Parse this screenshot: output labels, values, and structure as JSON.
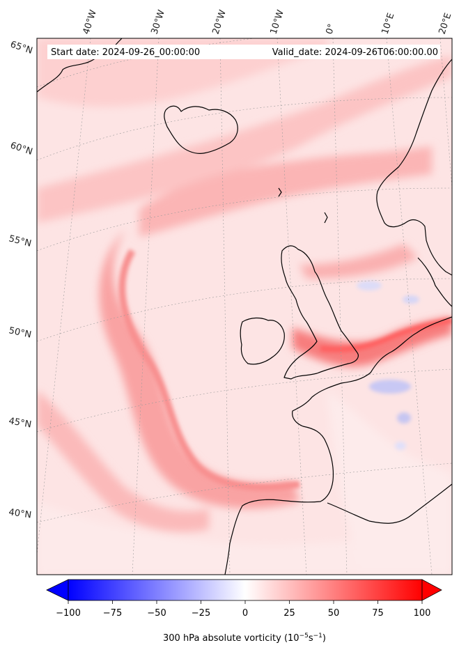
{
  "header": {
    "start_date": "Start date: 2024-09-26_00:00:00",
    "valid_date": "Valid_date: 2024-09-26T06:00:00.00"
  },
  "longitude_labels": [
    "40°W",
    "30°W",
    "20°W",
    "10°W",
    "0°",
    "10°E",
    "20°E"
  ],
  "latitude_labels": [
    "65°N",
    "60°N",
    "55°N",
    "50°N",
    "45°N",
    "40°N"
  ],
  "colorbar": {
    "min": -100,
    "max": 100,
    "ticks": [
      "−100",
      "−75",
      "−50",
      "−25",
      "0",
      "25",
      "50",
      "75",
      "100"
    ],
    "label": "300 hPa absolute vorticity (10",
    "label_exp1": "−5",
    "label_mid": "s",
    "label_exp2": "−1",
    "label_end": ")",
    "colors": {
      "low": "#0000ff",
      "mid": "#ffffff",
      "high": "#ff0000"
    }
  },
  "colors": {
    "coastline": "#000000",
    "background": "#ffffff"
  }
}
